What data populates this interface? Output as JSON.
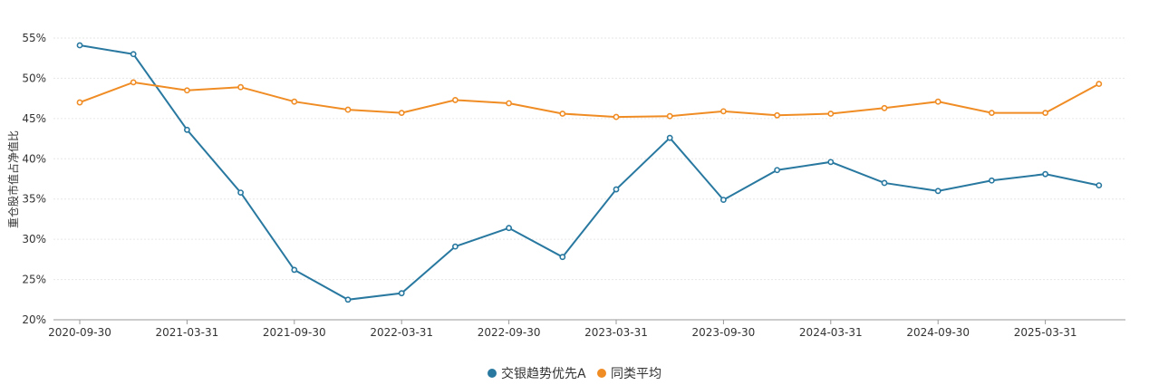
{
  "chart_data": {
    "type": "line",
    "ylabel": "重仓股市值占净值比",
    "x": [
      "2020-09-30",
      "2020-12-31",
      "2021-03-31",
      "2021-06-30",
      "2021-09-30",
      "2021-12-31",
      "2022-03-31",
      "2022-06-30",
      "2022-09-30",
      "2022-12-31",
      "2023-03-31",
      "2023-06-30",
      "2023-09-30",
      "2023-12-31",
      "2024-03-31",
      "2024-06-30",
      "2024-09-30",
      "2024-12-31",
      "2025-03-31",
      "2025-06-30"
    ],
    "x_tick_labels": [
      "2020-09-30",
      "2021-03-31",
      "2021-09-30",
      "2022-03-31",
      "2022-09-30",
      "2023-03-31",
      "2023-09-30",
      "2024-03-31",
      "2024-09-30",
      "2025-03-31"
    ],
    "y_tick_labels": [
      "20%",
      "25%",
      "30%",
      "35%",
      "40%",
      "45%",
      "50%",
      "55%"
    ],
    "ylim": [
      20,
      55
    ],
    "grid": "horizontal dashed",
    "legend_position": "bottom-center",
    "series": [
      {
        "name": "交银趋势优先A",
        "color": "#2878a0",
        "values": [
          54.1,
          53.0,
          43.6,
          35.8,
          26.2,
          22.5,
          23.3,
          29.1,
          31.4,
          27.8,
          36.2,
          42.6,
          34.9,
          38.6,
          39.6,
          37.0,
          36.0,
          37.3,
          38.1,
          36.7
        ]
      },
      {
        "name": "同类平均",
        "color": "#f08c24",
        "values": [
          47.0,
          49.5,
          48.5,
          48.9,
          47.1,
          46.1,
          45.7,
          47.3,
          46.9,
          45.6,
          45.2,
          45.3,
          45.9,
          45.4,
          45.6,
          46.3,
          47.1,
          45.7,
          45.7,
          49.3
        ]
      }
    ]
  }
}
